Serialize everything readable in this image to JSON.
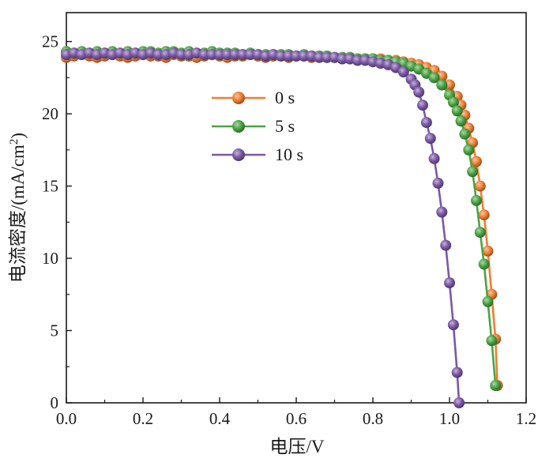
{
  "chart_data": {
    "type": "line",
    "xlabel": "电压/V",
    "ylabel_main": "电流密度/(mA/cm",
    "ylabel_sup": "2",
    "ylabel_tail": ")",
    "xlim": [
      0.0,
      1.2
    ],
    "ylim": [
      0,
      27
    ],
    "xticks": [
      "0.0",
      "0.2",
      "0.4",
      "0.6",
      "0.8",
      "1.0",
      "1.2"
    ],
    "yticks": [
      "0",
      "5",
      "10",
      "15",
      "20",
      "25"
    ],
    "grid": false,
    "legend_position": "upper-middle",
    "series": [
      {
        "name": "0 s",
        "color": "#ef7d31",
        "points": [
          [
            0.0,
            23.9
          ],
          [
            0.02,
            24.0
          ],
          [
            0.04,
            24.1
          ],
          [
            0.06,
            24.0
          ],
          [
            0.08,
            23.9
          ],
          [
            0.1,
            24.0
          ],
          [
            0.12,
            24.1
          ],
          [
            0.14,
            24.0
          ],
          [
            0.16,
            23.9
          ],
          [
            0.18,
            24.0
          ],
          [
            0.2,
            24.1
          ],
          [
            0.22,
            24.0
          ],
          [
            0.24,
            24.0
          ],
          [
            0.26,
            23.9
          ],
          [
            0.28,
            24.1
          ],
          [
            0.3,
            24.0
          ],
          [
            0.32,
            24.0
          ],
          [
            0.34,
            23.9
          ],
          [
            0.36,
            24.0
          ],
          [
            0.38,
            24.1
          ],
          [
            0.4,
            24.0
          ],
          [
            0.42,
            23.9
          ],
          [
            0.44,
            24.0
          ],
          [
            0.46,
            24.0
          ],
          [
            0.48,
            24.1
          ],
          [
            0.5,
            24.0
          ],
          [
            0.52,
            23.9
          ],
          [
            0.54,
            24.0
          ],
          [
            0.56,
            24.0
          ],
          [
            0.58,
            23.9
          ],
          [
            0.6,
            24.0
          ],
          [
            0.62,
            24.0
          ],
          [
            0.64,
            23.9
          ],
          [
            0.66,
            24.0
          ],
          [
            0.68,
            23.9
          ],
          [
            0.7,
            23.9
          ],
          [
            0.72,
            23.9
          ],
          [
            0.74,
            23.9
          ],
          [
            0.76,
            23.8
          ],
          [
            0.78,
            23.8
          ],
          [
            0.8,
            23.8
          ],
          [
            0.82,
            23.8
          ],
          [
            0.84,
            23.7
          ],
          [
            0.86,
            23.7
          ],
          [
            0.88,
            23.6
          ],
          [
            0.9,
            23.5
          ],
          [
            0.92,
            23.4
          ],
          [
            0.94,
            23.2
          ],
          [
            0.96,
            23.0
          ],
          [
            0.98,
            22.6
          ],
          [
            1.0,
            22.0
          ],
          [
            1.02,
            21.2
          ],
          [
            1.03,
            20.6
          ],
          [
            1.04,
            19.9
          ],
          [
            1.05,
            19.0
          ],
          [
            1.06,
            18.0
          ],
          [
            1.07,
            16.7
          ],
          [
            1.08,
            15.0
          ],
          [
            1.09,
            13.0
          ],
          [
            1.1,
            10.5
          ],
          [
            1.11,
            7.5
          ],
          [
            1.12,
            4.4
          ],
          [
            1.125,
            1.2
          ]
        ]
      },
      {
        "name": "5 s",
        "color": "#4aa442",
        "points": [
          [
            0.0,
            24.3
          ],
          [
            0.02,
            24.2
          ],
          [
            0.04,
            24.3
          ],
          [
            0.06,
            24.2
          ],
          [
            0.08,
            24.3
          ],
          [
            0.1,
            24.2
          ],
          [
            0.12,
            24.3
          ],
          [
            0.14,
            24.2
          ],
          [
            0.16,
            24.3
          ],
          [
            0.18,
            24.2
          ],
          [
            0.2,
            24.3
          ],
          [
            0.22,
            24.3
          ],
          [
            0.24,
            24.2
          ],
          [
            0.26,
            24.3
          ],
          [
            0.28,
            24.3
          ],
          [
            0.3,
            24.2
          ],
          [
            0.32,
            24.3
          ],
          [
            0.34,
            24.2
          ],
          [
            0.36,
            24.2
          ],
          [
            0.38,
            24.3
          ],
          [
            0.4,
            24.2
          ],
          [
            0.42,
            24.2
          ],
          [
            0.44,
            24.2
          ],
          [
            0.46,
            24.1
          ],
          [
            0.48,
            24.2
          ],
          [
            0.5,
            24.1
          ],
          [
            0.52,
            24.1
          ],
          [
            0.54,
            24.1
          ],
          [
            0.56,
            24.1
          ],
          [
            0.58,
            24.1
          ],
          [
            0.6,
            24.0
          ],
          [
            0.62,
            24.1
          ],
          [
            0.64,
            24.0
          ],
          [
            0.66,
            24.0
          ],
          [
            0.68,
            24.0
          ],
          [
            0.7,
            23.9
          ],
          [
            0.72,
            23.9
          ],
          [
            0.74,
            23.9
          ],
          [
            0.76,
            23.8
          ],
          [
            0.78,
            23.8
          ],
          [
            0.8,
            23.8
          ],
          [
            0.82,
            23.7
          ],
          [
            0.84,
            23.7
          ],
          [
            0.86,
            23.6
          ],
          [
            0.88,
            23.5
          ],
          [
            0.9,
            23.3
          ],
          [
            0.92,
            23.1
          ],
          [
            0.94,
            22.8
          ],
          [
            0.96,
            22.5
          ],
          [
            0.98,
            22.0
          ],
          [
            1.0,
            21.3
          ],
          [
            1.01,
            20.8
          ],
          [
            1.02,
            20.2
          ],
          [
            1.03,
            19.5
          ],
          [
            1.04,
            18.6
          ],
          [
            1.05,
            17.5
          ],
          [
            1.06,
            16.0
          ],
          [
            1.07,
            14.0
          ],
          [
            1.08,
            11.8
          ],
          [
            1.09,
            9.6
          ],
          [
            1.1,
            7.0
          ],
          [
            1.11,
            4.3
          ],
          [
            1.12,
            1.2
          ]
        ]
      },
      {
        "name": "10 s",
        "color": "#7a58a6",
        "points": [
          [
            0.0,
            24.1
          ],
          [
            0.02,
            24.2
          ],
          [
            0.04,
            24.1
          ],
          [
            0.06,
            24.2
          ],
          [
            0.08,
            24.1
          ],
          [
            0.1,
            24.2
          ],
          [
            0.12,
            24.1
          ],
          [
            0.14,
            24.2
          ],
          [
            0.16,
            24.1
          ],
          [
            0.18,
            24.2
          ],
          [
            0.2,
            24.1
          ],
          [
            0.22,
            24.2
          ],
          [
            0.24,
            24.1
          ],
          [
            0.26,
            24.1
          ],
          [
            0.28,
            24.2
          ],
          [
            0.3,
            24.1
          ],
          [
            0.32,
            24.1
          ],
          [
            0.34,
            24.2
          ],
          [
            0.36,
            24.1
          ],
          [
            0.38,
            24.1
          ],
          [
            0.4,
            24.1
          ],
          [
            0.42,
            24.1
          ],
          [
            0.44,
            24.1
          ],
          [
            0.46,
            24.1
          ],
          [
            0.48,
            24.1
          ],
          [
            0.5,
            24.1
          ],
          [
            0.52,
            24.0
          ],
          [
            0.54,
            24.1
          ],
          [
            0.56,
            24.0
          ],
          [
            0.58,
            24.0
          ],
          [
            0.6,
            24.0
          ],
          [
            0.62,
            24.0
          ],
          [
            0.64,
            24.0
          ],
          [
            0.66,
            23.9
          ],
          [
            0.68,
            23.9
          ],
          [
            0.7,
            23.9
          ],
          [
            0.72,
            23.8
          ],
          [
            0.74,
            23.8
          ],
          [
            0.76,
            23.7
          ],
          [
            0.78,
            23.7
          ],
          [
            0.8,
            23.6
          ],
          [
            0.82,
            23.5
          ],
          [
            0.84,
            23.4
          ],
          [
            0.86,
            23.2
          ],
          [
            0.88,
            22.9
          ],
          [
            0.9,
            22.4
          ],
          [
            0.91,
            22.0
          ],
          [
            0.92,
            21.5
          ],
          [
            0.93,
            20.6
          ],
          [
            0.94,
            19.4
          ],
          [
            0.95,
            18.3
          ],
          [
            0.96,
            16.9
          ],
          [
            0.97,
            15.2
          ],
          [
            0.98,
            13.2
          ],
          [
            0.99,
            10.9
          ],
          [
            1.0,
            8.3
          ],
          [
            1.01,
            5.4
          ],
          [
            1.02,
            2.1
          ],
          [
            1.025,
            0.0
          ]
        ]
      }
    ]
  }
}
